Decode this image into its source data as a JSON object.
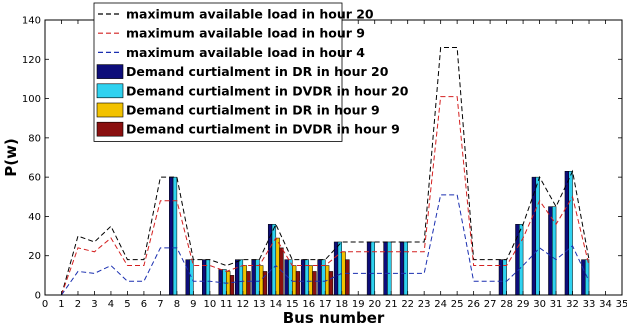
{
  "chart_data": {
    "type": "bar",
    "xlabel": "Bus number",
    "ylabel": "P(w)",
    "xlim": [
      0,
      35
    ],
    "ylim": [
      0,
      140
    ],
    "x_ticks": [
      0,
      1,
      2,
      3,
      4,
      5,
      6,
      7,
      8,
      9,
      10,
      11,
      12,
      13,
      14,
      15,
      16,
      17,
      18,
      19,
      20,
      21,
      22,
      23,
      24,
      25,
      26,
      27,
      28,
      29,
      30,
      31,
      32,
      33,
      34,
      35
    ],
    "y_ticks": [
      0,
      20,
      40,
      60,
      80,
      100,
      120,
      140
    ],
    "grid": false,
    "legend_position": "top-left",
    "lines": [
      {
        "name": "maximum available load in hour 20",
        "color": "#000000",
        "dash": "dashed",
        "x": [
          1,
          2,
          3,
          4,
          5,
          6,
          7,
          8,
          9,
          10,
          11,
          12,
          13,
          14,
          15,
          16,
          17,
          18,
          19,
          20,
          21,
          22,
          23,
          24,
          25,
          26,
          27,
          28,
          29,
          30,
          31,
          32,
          33
        ],
        "y": [
          0,
          30,
          27,
          35,
          18,
          18,
          60,
          60,
          18,
          18,
          15,
          18,
          18,
          36,
          18,
          18,
          18,
          27,
          27,
          27,
          27,
          27,
          27,
          126,
          126,
          18,
          18,
          18,
          36,
          60,
          45,
          63,
          18
        ]
      },
      {
        "name": "maximum available load in hour 9",
        "color": "#d42020",
        "dash": "dashed",
        "x": [
          1,
          2,
          3,
          4,
          5,
          6,
          7,
          8,
          9,
          10,
          11,
          12,
          13,
          14,
          15,
          16,
          17,
          18,
          19,
          20,
          21,
          22,
          23,
          24,
          25,
          26,
          27,
          28,
          29,
          30,
          31,
          32,
          33
        ],
        "y": [
          0,
          24,
          22,
          29,
          15,
          15,
          48,
          48,
          15,
          15,
          12,
          15,
          15,
          29,
          15,
          15,
          15,
          22,
          22,
          22,
          22,
          22,
          22,
          101,
          101,
          15,
          15,
          15,
          29,
          48,
          36,
          50,
          15
        ]
      },
      {
        "name": "maximum available load in hour 4",
        "color": "#1a2fb0",
        "dash": "dashed",
        "x": [
          1,
          2,
          3,
          4,
          5,
          6,
          7,
          8,
          9,
          10,
          11,
          12,
          13,
          14,
          15,
          16,
          17,
          18,
          19,
          20,
          21,
          22,
          23,
          24,
          25,
          26,
          27,
          28,
          29,
          30,
          31,
          32,
          33
        ],
        "y": [
          0,
          12,
          11,
          15,
          7,
          7,
          24,
          24,
          7,
          7,
          6,
          7,
          7,
          15,
          7,
          7,
          7,
          11,
          11,
          11,
          11,
          11,
          11,
          51,
          51,
          7,
          7,
          7,
          15,
          24,
          18,
          25,
          7
        ]
      }
    ],
    "bar_series": [
      {
        "name": "Demand curtialment in DR in hour 20",
        "color": "#0d0d7a",
        "x": [
          8,
          9,
          10,
          11,
          12,
          13,
          14,
          15,
          16,
          17,
          18,
          20,
          21,
          22,
          28,
          29,
          30,
          31,
          32,
          33
        ],
        "values": [
          60,
          18,
          18,
          13,
          18,
          18,
          36,
          18,
          18,
          18,
          27,
          27,
          27,
          27,
          18,
          36,
          60,
          45,
          63,
          18
        ]
      },
      {
        "name": "Demand curtialment in DVDR in hour 20",
        "color": "#2fd2f0",
        "x": [
          8,
          9,
          10,
          11,
          12,
          13,
          14,
          15,
          16,
          17,
          18,
          20,
          21,
          22,
          28,
          29,
          30,
          31,
          32,
          33
        ],
        "values": [
          60,
          18,
          18,
          13,
          18,
          18,
          36,
          18,
          18,
          18,
          27,
          27,
          27,
          27,
          18,
          36,
          60,
          45,
          63,
          18
        ]
      },
      {
        "name": "Demand curtialment in DR in hour 9",
        "color": "#f2c200",
        "x": [
          11,
          12,
          13,
          14,
          15,
          16,
          17,
          18
        ],
        "values": [
          12,
          15,
          15,
          29,
          15,
          15,
          15,
          22
        ]
      },
      {
        "name": "Demand curtialment in DVDR in hour 9",
        "color": "#8a1010",
        "x": [
          11,
          12,
          13,
          14,
          15,
          16,
          17,
          18
        ],
        "values": [
          10,
          12,
          12,
          24,
          12,
          12,
          12,
          18
        ]
      }
    ]
  }
}
